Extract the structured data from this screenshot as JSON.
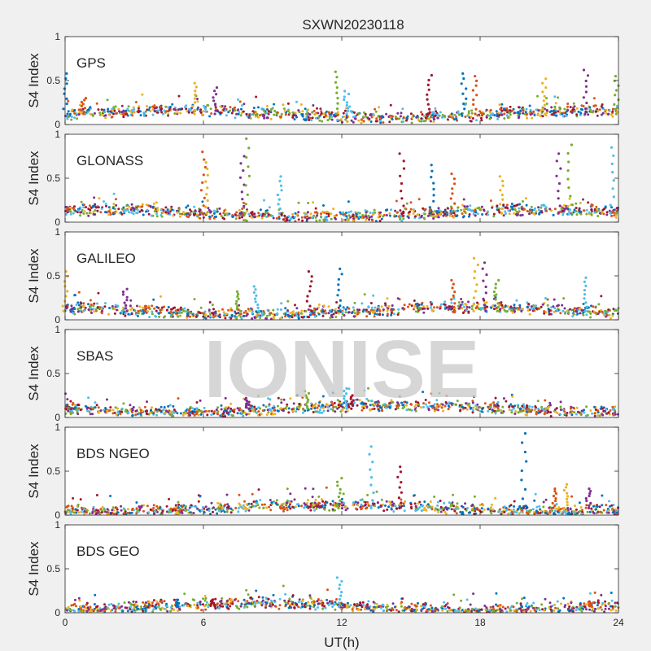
{
  "figure": {
    "title": "SXWN20230118",
    "xlabel": "UT(h)",
    "watermark": "IONISE"
  },
  "colors": [
    "#0072bd",
    "#d95319",
    "#edb120",
    "#7e2f8e",
    "#77ac30",
    "#4dbeee",
    "#a2142f"
  ],
  "chart_data": [
    {
      "type": "scatter",
      "panel_label": "GPS",
      "ylabel": "S4 Index",
      "xlim": [
        0,
        24
      ],
      "ylim": [
        0,
        1
      ],
      "xticks": [
        0,
        6,
        12,
        18,
        24
      ],
      "yticks": [
        0,
        0.5,
        1
      ],
      "baseline": 0.12,
      "series": [
        {
          "x": [
            0.0,
            0.8,
            5.6,
            6.5,
            11.8,
            12.2,
            15.8,
            17.3,
            17.8,
            20.8,
            22.6,
            23.9
          ],
          "y": [
            0.58,
            0.3,
            0.47,
            0.42,
            0.6,
            0.38,
            0.56,
            0.58,
            0.55,
            0.52,
            0.62,
            0.55
          ]
        }
      ]
    },
    {
      "type": "scatter",
      "panel_label": "GLONASS",
      "ylabel": "S4 Index",
      "xlim": [
        0,
        24
      ],
      "ylim": [
        0,
        1
      ],
      "xticks": [
        0,
        6,
        12,
        18,
        24
      ],
      "yticks": [
        0,
        0.5,
        1
      ],
      "baseline": 0.1,
      "series": [
        {
          "x": [
            6.0,
            6.2,
            7.7,
            7.9,
            9.3,
            14.6,
            15.9,
            16.8,
            18.9,
            21.4,
            21.9,
            23.7
          ],
          "y": [
            0.8,
            0.68,
            0.75,
            0.95,
            0.52,
            0.78,
            0.65,
            0.55,
            0.52,
            0.78,
            0.88,
            0.85
          ]
        }
      ]
    },
    {
      "type": "scatter",
      "panel_label": "GALILEO",
      "ylabel": "S4 Index",
      "xlim": [
        0,
        24
      ],
      "ylim": [
        0,
        1
      ],
      "xticks": [
        0,
        6,
        12,
        18,
        24
      ],
      "yticks": [
        0,
        0.5,
        1
      ],
      "baseline": 0.1,
      "series": [
        {
          "x": [
            0.0,
            2.6,
            7.5,
            8.3,
            10.6,
            11.9,
            16.8,
            17.8,
            18.2,
            18.7,
            22.6
          ],
          "y": [
            0.55,
            0.35,
            0.32,
            0.38,
            0.55,
            0.58,
            0.45,
            0.7,
            0.65,
            0.45,
            0.48
          ]
        }
      ]
    },
    {
      "type": "scatter",
      "panel_label": "SBAS",
      "ylabel": "S4 Index",
      "xlim": [
        0,
        24
      ],
      "ylim": [
        0,
        1
      ],
      "xticks": [
        0,
        6,
        12,
        18,
        24
      ],
      "yticks": [
        0,
        0.5,
        1
      ],
      "baseline": 0.1,
      "series": [
        {
          "x": [
            7.9,
            10.5,
            12.2,
            12.4
          ],
          "y": [
            0.22,
            0.3,
            0.33,
            0.25
          ]
        }
      ]
    },
    {
      "type": "scatter",
      "panel_label": "BDS NGEO",
      "ylabel": "S4 Index",
      "xlim": [
        0,
        24
      ],
      "ylim": [
        0,
        1
      ],
      "xticks": [
        0,
        6,
        12,
        18,
        24
      ],
      "yticks": [
        0,
        0.5,
        1
      ],
      "baseline": 0.08,
      "series": [
        {
          "x": [
            11.9,
            13.3,
            14.5,
            19.9,
            21.2,
            21.7,
            22.7
          ],
          "y": [
            0.42,
            0.78,
            0.55,
            0.93,
            0.3,
            0.35,
            0.3
          ]
        }
      ]
    },
    {
      "type": "scatter",
      "panel_label": "BDS GEO",
      "ylabel": "S4 Index",
      "xlim": [
        0,
        24
      ],
      "ylim": [
        0,
        1
      ],
      "xticks": [
        0,
        6,
        12,
        18,
        24
      ],
      "yticks": [
        0,
        0.5,
        1
      ],
      "baseline": 0.07,
      "series": [
        {
          "x": [
            11.9,
            6.4,
            4.9,
            22.8
          ],
          "y": [
            0.4,
            0.15,
            0.12,
            0.12
          ]
        }
      ]
    }
  ]
}
